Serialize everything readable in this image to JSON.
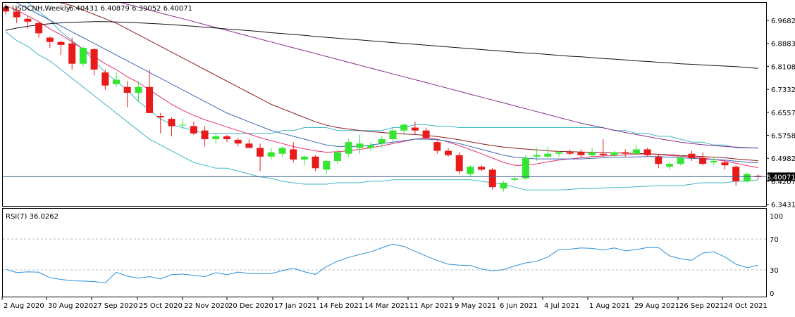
{
  "header": {
    "arrow": "▼",
    "symbol": "USDCNH,Weekly",
    "ohlc": "6.40431 6.40879 6.39052 6.40071"
  },
  "rsi_label": "RSI(7) 36.0262",
  "last_price_label": "6.40071",
  "colors": {
    "up": "#32e632",
    "down": "#e81a1a",
    "bb": "#3fb6c6",
    "ma_red": "#e8306a",
    "ma_blue": "#3e66b8",
    "ma_brown": "#8c1c1c",
    "ma_purple": "#8a2b8a",
    "ma_black": "#111111",
    "rsi": "#2a8fdd",
    "price_line": "#3f5f8f"
  },
  "chart_data": [
    {
      "type": "candlestick",
      "title": "USDCNH,Weekly",
      "ylim": [
        6.3,
        7.0
      ],
      "y_ticks": [
        "6.96825",
        "6.88833",
        "6.81080",
        "6.73325",
        "6.65570",
        "6.57580",
        "6.49825",
        "6.42070",
        "6.34315"
      ],
      "x_ticks": [
        "2 Aug 2020",
        "30 Aug 2020",
        "27 Sep 2020",
        "25 Oct 2020",
        "22 Nov 2020",
        "20 Dec 2020",
        "17 Jan 2021",
        "14 Feb 2021",
        "14 Mar 2021",
        "11 Apr 2021",
        "9 May 2021",
        "6 Jun 2021",
        "4 Jul 2021",
        "1 Aug 2021",
        "29 Aug 2021",
        "26 Sep 2021",
        "24 Oct 2021"
      ],
      "last_price": 6.40071,
      "candles": [
        {
          "o": 6.985,
          "h": 6.995,
          "l": 6.96,
          "c": 6.97
        },
        {
          "o": 6.97,
          "h": 6.98,
          "l": 6.93,
          "c": 6.95
        },
        {
          "o": 6.945,
          "h": 6.955,
          "l": 6.91,
          "c": 6.935
        },
        {
          "o": 6.93,
          "h": 6.935,
          "l": 6.88,
          "c": 6.895
        },
        {
          "o": 6.88,
          "h": 6.885,
          "l": 6.845,
          "c": 6.865
        },
        {
          "o": 6.865,
          "h": 6.87,
          "l": 6.82,
          "c": 6.855
        },
        {
          "o": 6.86,
          "h": 6.88,
          "l": 6.77,
          "c": 6.79
        },
        {
          "o": 6.79,
          "h": 6.85,
          "l": 6.78,
          "c": 6.845
        },
        {
          "o": 6.84,
          "h": 6.845,
          "l": 6.75,
          "c": 6.77
        },
        {
          "o": 6.76,
          "h": 6.77,
          "l": 6.7,
          "c": 6.715
        },
        {
          "o": 6.72,
          "h": 6.76,
          "l": 6.71,
          "c": 6.735
        },
        {
          "o": 6.71,
          "h": 6.73,
          "l": 6.64,
          "c": 6.69
        },
        {
          "o": 6.69,
          "h": 6.73,
          "l": 6.66,
          "c": 6.71
        },
        {
          "o": 6.71,
          "h": 6.77,
          "l": 6.62,
          "c": 6.62
        },
        {
          "o": 6.61,
          "h": 6.62,
          "l": 6.55,
          "c": 6.605
        },
        {
          "o": 6.6,
          "h": 6.605,
          "l": 6.54,
          "c": 6.575
        },
        {
          "o": 6.58,
          "h": 6.6,
          "l": 6.565,
          "c": 6.58
        },
        {
          "o": 6.575,
          "h": 6.59,
          "l": 6.545,
          "c": 6.55
        },
        {
          "o": 6.56,
          "h": 6.575,
          "l": 6.505,
          "c": 6.53
        },
        {
          "o": 6.53,
          "h": 6.55,
          "l": 6.515,
          "c": 6.54
        },
        {
          "o": 6.54,
          "h": 6.545,
          "l": 6.52,
          "c": 6.53
        },
        {
          "o": 6.528,
          "h": 6.535,
          "l": 6.505,
          "c": 6.515
        },
        {
          "o": 6.515,
          "h": 6.53,
          "l": 6.505,
          "c": 6.5
        },
        {
          "o": 6.5,
          "h": 6.515,
          "l": 6.42,
          "c": 6.47
        },
        {
          "o": 6.47,
          "h": 6.5,
          "l": 6.46,
          "c": 6.485
        },
        {
          "o": 6.48,
          "h": 6.505,
          "l": 6.47,
          "c": 6.5
        },
        {
          "o": 6.495,
          "h": 6.52,
          "l": 6.45,
          "c": 6.46
        },
        {
          "o": 6.46,
          "h": 6.475,
          "l": 6.44,
          "c": 6.47
        },
        {
          "o": 6.47,
          "h": 6.475,
          "l": 6.42,
          "c": 6.43
        },
        {
          "o": 6.425,
          "h": 6.46,
          "l": 6.41,
          "c": 6.455
        },
        {
          "o": 6.455,
          "h": 6.495,
          "l": 6.445,
          "c": 6.485
        },
        {
          "o": 6.48,
          "h": 6.53,
          "l": 6.47,
          "c": 6.52
        },
        {
          "o": 6.5,
          "h": 6.545,
          "l": 6.48,
          "c": 6.515
        },
        {
          "o": 6.5,
          "h": 6.52,
          "l": 6.49,
          "c": 6.51
        },
        {
          "o": 6.515,
          "h": 6.54,
          "l": 6.5,
          "c": 6.53
        },
        {
          "o": 6.53,
          "h": 6.57,
          "l": 6.52,
          "c": 6.56
        },
        {
          "o": 6.56,
          "h": 6.585,
          "l": 6.545,
          "c": 6.58
        },
        {
          "o": 6.57,
          "h": 6.59,
          "l": 6.545,
          "c": 6.56
        },
        {
          "o": 6.56,
          "h": 6.57,
          "l": 6.53,
          "c": 6.535
        },
        {
          "o": 6.52,
          "h": 6.525,
          "l": 6.48,
          "c": 6.49
        },
        {
          "o": 6.49,
          "h": 6.5,
          "l": 6.47,
          "c": 6.475
        },
        {
          "o": 6.475,
          "h": 6.485,
          "l": 6.41,
          "c": 6.42
        },
        {
          "o": 6.41,
          "h": 6.44,
          "l": 6.4,
          "c": 6.435
        },
        {
          "o": 6.435,
          "h": 6.44,
          "l": 6.42,
          "c": 6.425
        },
        {
          "o": 6.425,
          "h": 6.43,
          "l": 6.355,
          "c": 6.365
        },
        {
          "o": 6.36,
          "h": 6.385,
          "l": 6.35,
          "c": 6.38
        },
        {
          "o": 6.39,
          "h": 6.4,
          "l": 6.385,
          "c": 6.395
        },
        {
          "o": 6.395,
          "h": 6.475,
          "l": 6.39,
          "c": 6.465
        },
        {
          "o": 6.47,
          "h": 6.5,
          "l": 6.455,
          "c": 6.475
        },
        {
          "o": 6.47,
          "h": 6.505,
          "l": 6.465,
          "c": 6.48
        },
        {
          "o": 6.48,
          "h": 6.49,
          "l": 6.47,
          "c": 6.485
        },
        {
          "o": 6.485,
          "h": 6.495,
          "l": 6.475,
          "c": 6.48
        },
        {
          "o": 6.485,
          "h": 6.495,
          "l": 6.465,
          "c": 6.475
        },
        {
          "o": 6.475,
          "h": 6.5,
          "l": 6.47,
          "c": 6.485
        },
        {
          "o": 6.48,
          "h": 6.53,
          "l": 6.47,
          "c": 6.475
        },
        {
          "o": 6.475,
          "h": 6.49,
          "l": 6.47,
          "c": 6.485
        },
        {
          "o": 6.485,
          "h": 6.495,
          "l": 6.47,
          "c": 6.48
        },
        {
          "o": 6.48,
          "h": 6.51,
          "l": 6.475,
          "c": 6.495
        },
        {
          "o": 6.495,
          "h": 6.5,
          "l": 6.47,
          "c": 6.475
        },
        {
          "o": 6.47,
          "h": 6.48,
          "l": 6.43,
          "c": 6.445
        },
        {
          "o": 6.435,
          "h": 6.45,
          "l": 6.425,
          "c": 6.445
        },
        {
          "o": 6.445,
          "h": 6.475,
          "l": 6.44,
          "c": 6.465
        },
        {
          "o": 6.48,
          "h": 6.49,
          "l": 6.455,
          "c": 6.465
        },
        {
          "o": 6.465,
          "h": 6.485,
          "l": 6.44,
          "c": 6.445
        },
        {
          "o": 6.45,
          "h": 6.47,
          "l": 6.44,
          "c": 6.455
        },
        {
          "o": 6.45,
          "h": 6.46,
          "l": 6.425,
          "c": 6.44
        },
        {
          "o": 6.435,
          "h": 6.44,
          "l": 6.37,
          "c": 6.385
        },
        {
          "o": 6.385,
          "h": 6.415,
          "l": 6.38,
          "c": 6.41
        },
        {
          "o": 6.404,
          "h": 6.409,
          "l": 6.391,
          "c": 6.401
        }
      ],
      "indicators": [
        {
          "kind": "bollinger_upper",
          "color_key": "bb",
          "values": [
            7.05,
            7.03,
            7.0,
            6.97,
            6.94,
            6.9,
            6.87,
            6.84,
            6.8,
            6.76,
            6.73,
            6.7,
            6.66,
            6.63,
            6.6,
            6.58,
            6.57,
            6.56,
            6.55,
            6.55,
            6.55,
            6.55,
            6.55,
            6.55,
            6.55,
            6.56,
            6.56,
            6.57,
            6.57,
            6.57,
            6.56,
            6.56,
            6.56,
            6.56,
            6.56,
            6.57,
            6.57,
            6.58,
            6.58,
            6.575,
            6.575,
            6.57,
            6.57,
            6.57,
            6.57,
            6.57,
            6.57,
            6.57,
            6.57,
            6.57,
            6.57,
            6.57,
            6.57,
            6.57,
            6.57,
            6.56,
            6.56,
            6.55,
            6.55,
            6.54,
            6.54,
            6.53,
            6.52,
            6.52,
            6.51,
            6.51,
            6.5,
            6.5,
            6.5
          ]
        },
        {
          "kind": "bollinger_lower",
          "color_key": "bb",
          "values": [
            6.9,
            6.87,
            6.85,
            6.82,
            6.8,
            6.77,
            6.74,
            6.71,
            6.68,
            6.65,
            6.62,
            6.59,
            6.56,
            6.53,
            6.51,
            6.49,
            6.47,
            6.45,
            6.44,
            6.43,
            6.43,
            6.42,
            6.41,
            6.4,
            6.395,
            6.385,
            6.38,
            6.375,
            6.375,
            6.375,
            6.38,
            6.38,
            6.38,
            6.385,
            6.385,
            6.39,
            6.39,
            6.39,
            6.39,
            6.39,
            6.39,
            6.39,
            6.39,
            6.385,
            6.38,
            6.375,
            6.365,
            6.355,
            6.355,
            6.355,
            6.355,
            6.357,
            6.36,
            6.36,
            6.362,
            6.364,
            6.364,
            6.366,
            6.368,
            6.37,
            6.37,
            6.37,
            6.375,
            6.38,
            6.38,
            6.38,
            6.385,
            6.385,
            6.39
          ]
        },
        {
          "kind": "ma_fast",
          "color_key": "ma_red",
          "values": [
            6.99,
            6.975,
            6.955,
            6.935,
            6.91,
            6.89,
            6.865,
            6.84,
            6.815,
            6.79,
            6.77,
            6.745,
            6.725,
            6.7,
            6.675,
            6.65,
            6.63,
            6.612,
            6.597,
            6.585,
            6.572,
            6.56,
            6.548,
            6.535,
            6.525,
            6.515,
            6.505,
            6.497,
            6.49,
            6.485,
            6.487,
            6.49,
            6.495,
            6.5,
            6.507,
            6.515,
            6.522,
            6.53,
            6.534,
            6.53,
            6.52,
            6.508,
            6.494,
            6.48,
            6.465,
            6.45,
            6.44,
            6.44,
            6.445,
            6.452,
            6.458,
            6.462,
            6.466,
            6.47,
            6.472,
            6.474,
            6.476,
            6.478,
            6.48,
            6.478,
            6.474,
            6.471,
            6.469,
            6.465,
            6.46,
            6.455,
            6.447,
            6.439,
            6.432
          ]
        },
        {
          "kind": "ma_mid",
          "color_key": "ma_blue",
          "values": [
            7.02,
            7.0,
            6.98,
            6.96,
            6.94,
            6.92,
            6.9,
            6.88,
            6.86,
            6.84,
            6.82,
            6.8,
            6.78,
            6.76,
            6.74,
            6.72,
            6.7,
            6.68,
            6.66,
            6.64,
            6.62,
            6.605,
            6.59,
            6.575,
            6.56,
            6.55,
            6.54,
            6.53,
            6.52,
            6.51,
            6.505,
            6.505,
            6.505,
            6.51,
            6.515,
            6.52,
            6.525,
            6.53,
            6.53,
            6.528,
            6.522,
            6.515,
            6.505,
            6.495,
            6.485,
            6.475,
            6.468,
            6.465,
            6.462,
            6.462,
            6.462,
            6.462,
            6.462,
            6.464,
            6.466,
            6.468,
            6.468,
            6.469,
            6.47,
            6.47,
            6.468,
            6.466,
            6.464,
            6.462,
            6.46,
            6.458,
            6.454,
            6.451,
            6.449
          ]
        },
        {
          "kind": "ma_slow",
          "color_key": "ma_brown",
          "values": [
            7.05,
            7.04,
            7.03,
            7.02,
            7.01,
            7.0,
            6.99,
            6.975,
            6.96,
            6.945,
            6.93,
            6.91,
            6.89,
            6.87,
            6.85,
            6.83,
            6.81,
            6.79,
            6.77,
            6.75,
            6.73,
            6.71,
            6.69,
            6.67,
            6.65,
            6.635,
            6.62,
            6.605,
            6.59,
            6.578,
            6.57,
            6.565,
            6.56,
            6.556,
            6.553,
            6.55,
            6.548,
            6.546,
            6.543,
            6.539,
            6.534,
            6.528,
            6.521,
            6.514,
            6.508,
            6.503,
            6.499,
            6.496,
            6.493,
            6.49,
            6.488,
            6.487,
            6.486,
            6.485,
            6.484,
            6.483,
            6.482,
            6.481,
            6.48,
            6.478,
            6.476,
            6.474,
            6.472,
            6.47,
            6.468,
            6.466,
            6.462,
            6.459,
            6.456
          ]
        },
        {
          "kind": "ma_long",
          "color_key": "ma_purple",
          "values": [
            7.1,
            7.09,
            7.08,
            7.07,
            7.06,
            7.05,
            7.045,
            7.035,
            7.025,
            7.015,
            7.005,
            6.995,
            6.985,
            6.975,
            6.965,
            6.955,
            6.945,
            6.935,
            6.925,
            6.915,
            6.905,
            6.895,
            6.885,
            6.875,
            6.865,
            6.855,
            6.845,
            6.835,
            6.825,
            6.815,
            6.805,
            6.795,
            6.785,
            6.775,
            6.765,
            6.755,
            6.745,
            6.735,
            6.725,
            6.715,
            6.705,
            6.695,
            6.685,
            6.675,
            6.665,
            6.655,
            6.645,
            6.635,
            6.625,
            6.615,
            6.605,
            6.595,
            6.585,
            6.577,
            6.569,
            6.561,
            6.553,
            6.546,
            6.539,
            6.532,
            6.526,
            6.52,
            6.515,
            6.511,
            6.508,
            6.505,
            6.503,
            6.501,
            6.499
          ]
        },
        {
          "kind": "ma_very_long",
          "color_key": "ma_black",
          "values": [
            6.905,
            6.913,
            6.919,
            6.924,
            6.928,
            6.931,
            6.933,
            6.934,
            6.935,
            6.935,
            6.934,
            6.933,
            6.931,
            6.929,
            6.927,
            6.925,
            6.922,
            6.919,
            6.916,
            6.913,
            6.91,
            6.907,
            6.904,
            6.901,
            6.897,
            6.894,
            6.891,
            6.888,
            6.884,
            6.881,
            6.878,
            6.875,
            6.872,
            6.869,
            6.866,
            6.863,
            6.86,
            6.857,
            6.854,
            6.851,
            6.848,
            6.845,
            6.842,
            6.839,
            6.836,
            6.833,
            6.83,
            6.827,
            6.825,
            6.822,
            6.819,
            6.816,
            6.814,
            6.811,
            6.808,
            6.806,
            6.803,
            6.8,
            6.798,
            6.795,
            6.793,
            6.79,
            6.788,
            6.786,
            6.784,
            6.782,
            6.78,
            6.777,
            6.774
          ]
        }
      ]
    },
    {
      "type": "line",
      "title": "RSI(7) 36.0262",
      "ylim": [
        0,
        100
      ],
      "y_ticks": [
        "100",
        "70",
        "30",
        "0"
      ],
      "levels": [
        70,
        30
      ],
      "series": [
        {
          "color_key": "rsi",
          "values": [
            30.9,
            26.6,
            27.5,
            27.0,
            19.8,
            17.7,
            15.9,
            15.5,
            14.9,
            13.2,
            26.9,
            21.9,
            19.4,
            21.4,
            18.3,
            23.8,
            24.6,
            23.0,
            21.4,
            26.4,
            23.7,
            27.2,
            25.4,
            24.9,
            25.3,
            29.1,
            32.0,
            27.6,
            24.2,
            34.4,
            41.3,
            46.2,
            50.0,
            53.4,
            58.6,
            63.4,
            60.3,
            54.2,
            47.9,
            42.1,
            37.4,
            36.2,
            35.7,
            31.2,
            28.7,
            30.4,
            35.1,
            39.1,
            41.2,
            46.6,
            56.3,
            56.8,
            58.4,
            57.8,
            55.7,
            58.4,
            54.7,
            56.3,
            59.0,
            58.7,
            48.2,
            44.4,
            42.4,
            51.8,
            53.4,
            46.7,
            37.4,
            32.8,
            36.0
          ]
        }
      ]
    }
  ]
}
